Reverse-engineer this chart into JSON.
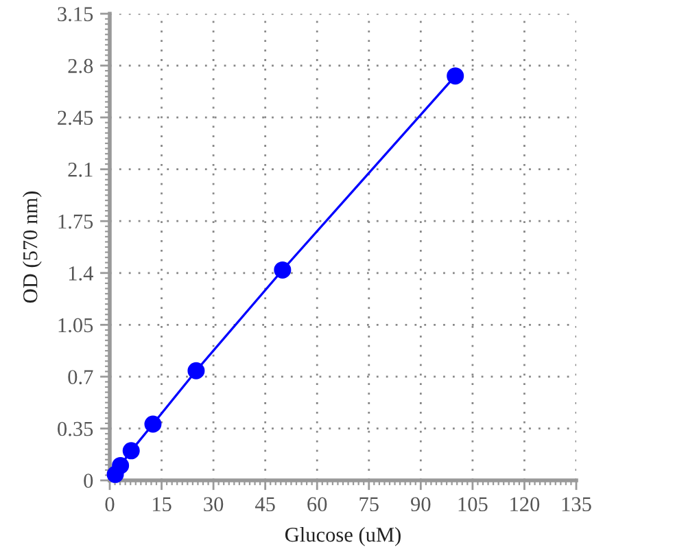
{
  "chart_data": {
    "type": "line",
    "xlabel": "Glucose (uM)",
    "ylabel": "OD (570 nm)",
    "x": [
      1.6,
      3.1,
      6.2,
      12.5,
      25,
      50,
      100
    ],
    "values": [
      0.04,
      0.1,
      0.2,
      0.38,
      0.74,
      1.42,
      2.73
    ],
    "color": "#0000ff",
    "marker": "circle",
    "line_style": "solid",
    "xlim": [
      0,
      135
    ],
    "xticks": [
      0,
      15,
      30,
      45,
      60,
      75,
      90,
      105,
      120,
      135
    ],
    "ylim": [
      0,
      3.15
    ],
    "yticks": [
      0,
      0.35,
      0.7,
      1.05,
      1.4,
      1.75,
      2.1,
      2.45,
      2.8,
      3.15
    ],
    "grid": true
  }
}
